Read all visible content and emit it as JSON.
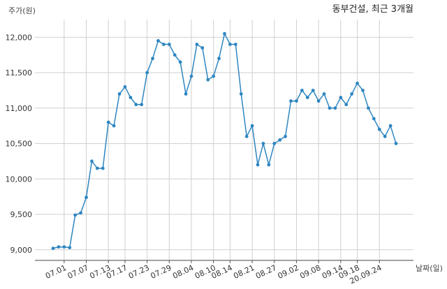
{
  "chart_data": {
    "type": "line",
    "title": "동부건설, 최근 3개월",
    "ylabel": "주가(원)",
    "xlabel": "날짜(일)",
    "ylim": [
      8850,
      12250
    ],
    "y_ticks": [
      9000,
      9500,
      10000,
      10500,
      11000,
      11500,
      12000
    ],
    "y_tick_labels": [
      "9,000",
      "9,500",
      "10,000",
      "10,500",
      "11,000",
      "11,500",
      "12,000"
    ],
    "x_tick_labels": [
      "07.01",
      "07.07",
      "07.13",
      "07.17",
      "07.23",
      "07.29",
      "08.04",
      "08.10",
      "08.14",
      "08.21",
      "08.27",
      "09.02",
      "09.08",
      "09.14",
      "09.18",
      "20.09.24"
    ],
    "x_tick_positions": [
      2,
      6,
      10,
      13,
      17,
      21,
      25,
      29,
      32,
      36,
      40,
      44,
      48,
      52,
      55,
      59
    ],
    "grid": true,
    "color": "#2e86c1",
    "series": [
      {
        "values": [
          9020,
          9040,
          9040,
          9030,
          9490,
          9520,
          9740,
          10250,
          10150,
          10150,
          10800,
          10750,
          11200,
          11300,
          11150,
          11050,
          11050,
          11500,
          11700,
          11950,
          11900,
          11900,
          11750,
          11650,
          11200,
          11450,
          11900,
          11850,
          11400,
          11450,
          11700,
          12050,
          11900,
          11900,
          11200,
          10600,
          10750,
          10200,
          10500,
          10200,
          10500,
          10550,
          10600,
          11100,
          11100,
          11250,
          11150,
          11250,
          11100,
          11200,
          11000,
          11000,
          11150,
          11050,
          11200,
          11350,
          11250,
          11000,
          10850,
          10700,
          10600,
          10750,
          10500
        ]
      }
    ]
  }
}
